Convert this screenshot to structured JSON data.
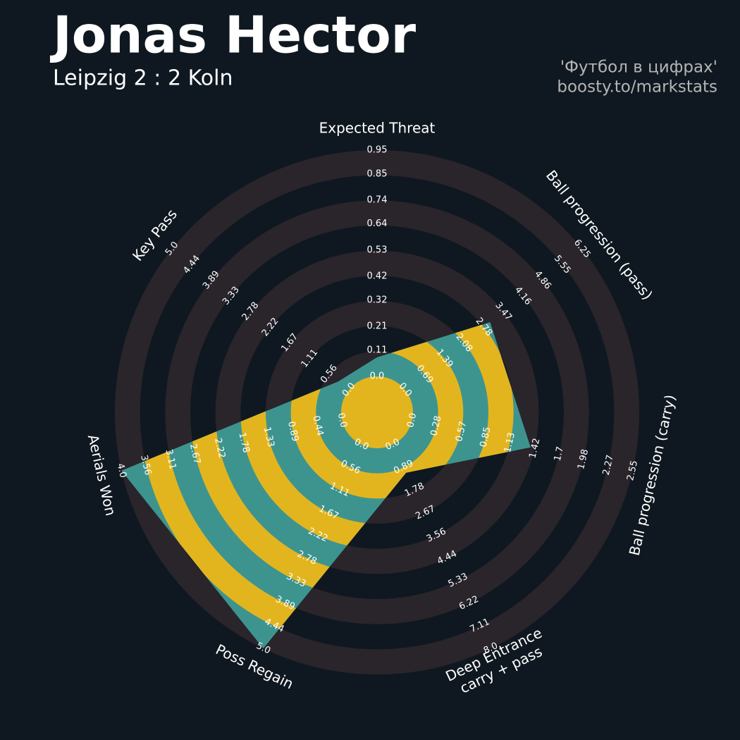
{
  "chart_data": {
    "type": "radar",
    "title": "Jonas Hector",
    "subtitle": "Leipzig 2 : 2 Koln",
    "credits": [
      "'Футбол в цифрах'",
      "boosty.to/markstats"
    ],
    "categories": [
      [
        "Expected Threat"
      ],
      [
        "Ball progression (pass)"
      ],
      [
        "Ball progression (carry)"
      ],
      [
        "Deep Entrance",
        "carry + pass"
      ],
      [
        "Poss Regain"
      ],
      [
        "Aerials Won"
      ],
      [
        "Key Pass"
      ]
    ],
    "axes": [
      {
        "lim": [
          0,
          0.95
        ],
        "ticks": [
          {
            "value": 0,
            "label": "0.0"
          },
          0.11,
          0.21,
          0.32,
          0.42,
          0.53,
          0.64,
          0.74,
          0.85,
          0.95
        ]
      },
      {
        "lim": [
          0,
          6.25
        ],
        "ticks": [
          {
            "value": 0,
            "label": "0.0"
          },
          0.69,
          1.39,
          2.08,
          2.78,
          3.47,
          4.16,
          4.86,
          5.55,
          6.25
        ]
      },
      {
        "lim": [
          0,
          2.55
        ],
        "ticks": [
          {
            "value": 0,
            "label": "0.0"
          },
          0.28,
          0.57,
          0.85,
          1.13,
          1.42,
          1.7,
          1.98,
          2.27,
          2.55
        ]
      },
      {
        "lim": [
          0,
          8
        ],
        "ticks": [
          {
            "value": 0,
            "label": "0.0"
          },
          0.89,
          1.78,
          2.67,
          3.56,
          4.44,
          5.33,
          6.22,
          7.11,
          {
            "value": 8,
            "label": "8.0"
          }
        ]
      },
      {
        "lim": [
          0,
          5
        ],
        "ticks": [
          {
            "value": 0,
            "label": "0.0"
          },
          0.56,
          1.11,
          1.67,
          2.22,
          2.78,
          3.33,
          3.89,
          4.44,
          {
            "value": 5,
            "label": "5.0"
          }
        ]
      },
      {
        "lim": [
          0,
          4
        ],
        "ticks": [
          {
            "value": 0,
            "label": "0.0"
          },
          0.44,
          0.89,
          1.33,
          1.78,
          2.22,
          2.67,
          3.11,
          3.56,
          {
            "value": 4,
            "label": "4.0"
          }
        ]
      },
      {
        "lim": [
          0,
          5
        ],
        "ticks": [
          {
            "value": 0,
            "label": "0.0"
          },
          0.56,
          1.11,
          1.67,
          2.22,
          2.78,
          3.33,
          3.89,
          4.44,
          {
            "value": 5,
            "label": "5.0"
          }
        ]
      }
    ],
    "values": [
      0.08,
      3.0,
      1.37,
      1.1,
      5,
      4,
      0.3
    ],
    "color": "#3d948f",
    "ring_color": "#e2b51f",
    "background_ring_color": "#29252b"
  }
}
